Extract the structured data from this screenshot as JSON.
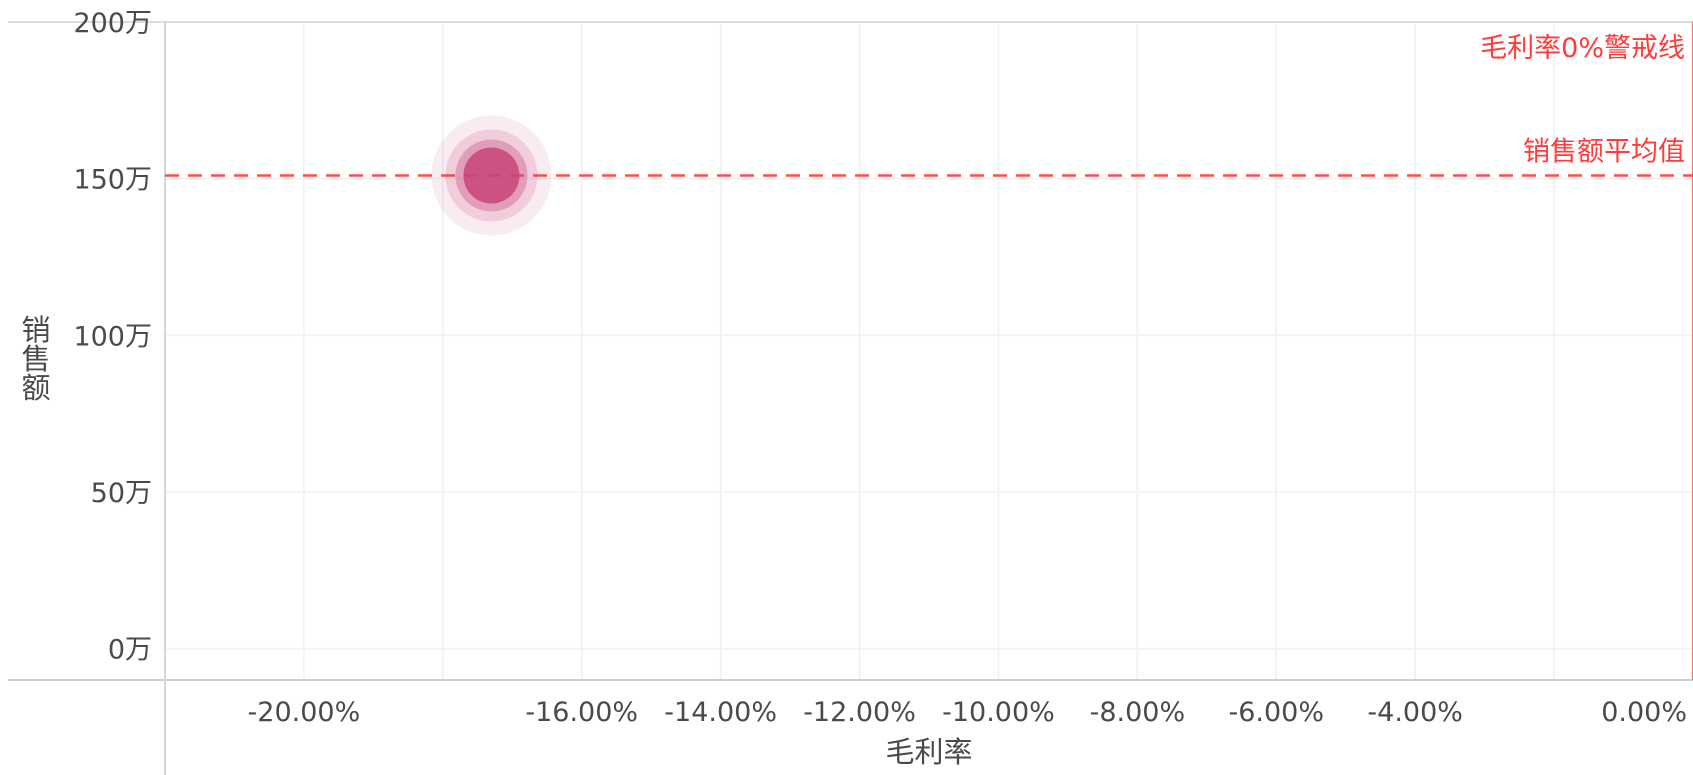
{
  "chart_data": {
    "type": "scatter",
    "title": "",
    "xlabel": "毛利率",
    "ylabel": "销售额",
    "xlim": [
      -22,
      0
    ],
    "ylim": [
      -10,
      200
    ],
    "x_tick_values": [
      -20,
      -16,
      -14,
      -12,
      -10,
      -8,
      -6,
      -4,
      0
    ],
    "x_tick_labels": [
      "-20.00%",
      "-16.00%",
      "-14.00%",
      "-12.00%",
      "-10.00%",
      "-8.00%",
      "-6.00%",
      "-4.00%",
      "0.00%"
    ],
    "x_grid_values": [
      -20,
      -18,
      -16,
      -14,
      -12,
      -10,
      -8,
      -6,
      -4,
      -2,
      0
    ],
    "y_tick_values": [
      0,
      50,
      100,
      150,
      200
    ],
    "y_tick_labels": [
      "0万",
      "50万",
      "100万",
      "150万",
      "200万"
    ],
    "grid": true,
    "points": [
      {
        "x": -17.3,
        "y": 151,
        "color": "#c9457a"
      }
    ],
    "reference_lines": [
      {
        "axis": "x",
        "value": 0,
        "label": "毛利率0%警戒线",
        "color": "#ff3b3b",
        "style": "solid"
      },
      {
        "axis": "y",
        "value": 151,
        "label": "销售额平均值",
        "color": "#ff4d4d",
        "style": "dashed"
      }
    ]
  }
}
